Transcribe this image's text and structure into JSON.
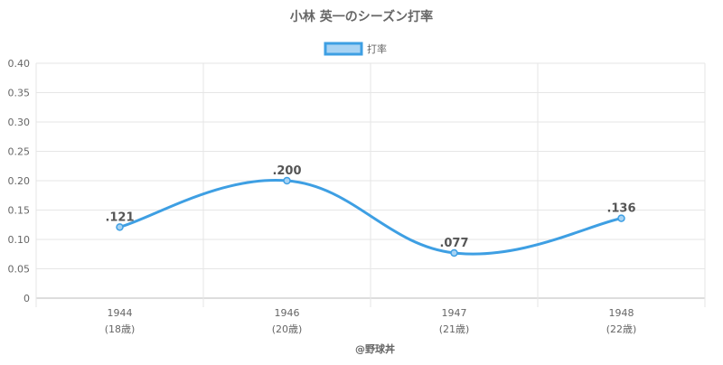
{
  "chart_data": {
    "type": "line",
    "title": "小林 英一のシーズン打率",
    "categories": [
      "1944",
      "1946",
      "1947",
      "1948"
    ],
    "sub_categories": [
      "(18歳)",
      "(20歳)",
      "(21歳)",
      "(22歳)"
    ],
    "series": [
      {
        "name": "打率",
        "values": [
          0.121,
          0.2,
          0.077,
          0.136
        ],
        "labels": [
          ".121",
          ".200",
          ".077",
          ".136"
        ],
        "color": "#3e9fe3",
        "fill": "#a8d3f3"
      }
    ],
    "y_ticks": [
      "0",
      "0.05",
      "0.10",
      "0.15",
      "0.20",
      "0.25",
      "0.30",
      "0.35",
      "0.40"
    ],
    "ylim": [
      0,
      0.4
    ],
    "grid": true,
    "legend": "top-center",
    "credit": "@野球丼"
  },
  "colors": {
    "grid": "#e6e6e6",
    "axis": "#bbbbbb",
    "text": "#666666"
  }
}
